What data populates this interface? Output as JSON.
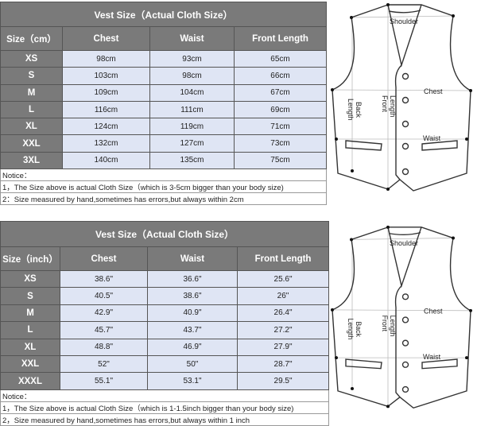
{
  "cm_chart": {
    "title": "Vest Size（Actual Cloth Size）",
    "headers": [
      "Size（cm）",
      "Chest",
      "Waist",
      "Front Length"
    ],
    "rows": [
      [
        "XS",
        "98cm",
        "93cm",
        "65cm"
      ],
      [
        "S",
        "103cm",
        "98cm",
        "66cm"
      ],
      [
        "M",
        "109cm",
        "104cm",
        "67cm"
      ],
      [
        "L",
        "116cm",
        "111cm",
        "69cm"
      ],
      [
        "XL",
        "124cm",
        "119cm",
        "71cm"
      ],
      [
        "XXL",
        "132cm",
        "127cm",
        "73cm"
      ],
      [
        "3XL",
        "140cm",
        "135cm",
        "75cm"
      ]
    ],
    "notes": [
      "Notice：",
      "1，The Size above is actual Cloth Size（which is 3-5cm bigger than your body size)",
      "2：Size measured by hand,sometimes has errors,but always within 2cm"
    ]
  },
  "inch_chart": {
    "title": "Vest Size（Actual Cloth Size）",
    "headers": [
      "Size（inch）",
      "Chest",
      "Waist",
      "Front Length"
    ],
    "rows": [
      [
        "XS",
        "38.6\"",
        "36.6\"",
        "25.6\""
      ],
      [
        "S",
        "40.5\"",
        "38.6\"",
        "26\""
      ],
      [
        "M",
        "42.9\"",
        "40.9\"",
        "26.4\""
      ],
      [
        "L",
        "45.7\"",
        "43.7\"",
        "27.2\""
      ],
      [
        "XL",
        "48.8\"",
        "46.9\"",
        "27.9\""
      ],
      [
        "XXL",
        "52\"",
        "50\"",
        "28.7\""
      ],
      [
        "XXXL",
        "55.1\"",
        "53.1\"",
        "29.5\""
      ]
    ],
    "notes": [
      "Notice：",
      "1，The Size above is actual Cloth Size（which is 1-1.5inch bigger than your body size)",
      "2，Size measured by hand,sometimes has errors,but always within 1 inch"
    ]
  },
  "diagram_labels": {
    "shoulder": "Shoulder",
    "chest": "Chest",
    "waist": "Waist",
    "front_length": [
      "Front",
      "Length"
    ],
    "back_length": [
      "Back",
      "Length"
    ]
  },
  "colors": {
    "header_bg": "#7a7a7a",
    "cell_bg": "#dfe5f4"
  }
}
